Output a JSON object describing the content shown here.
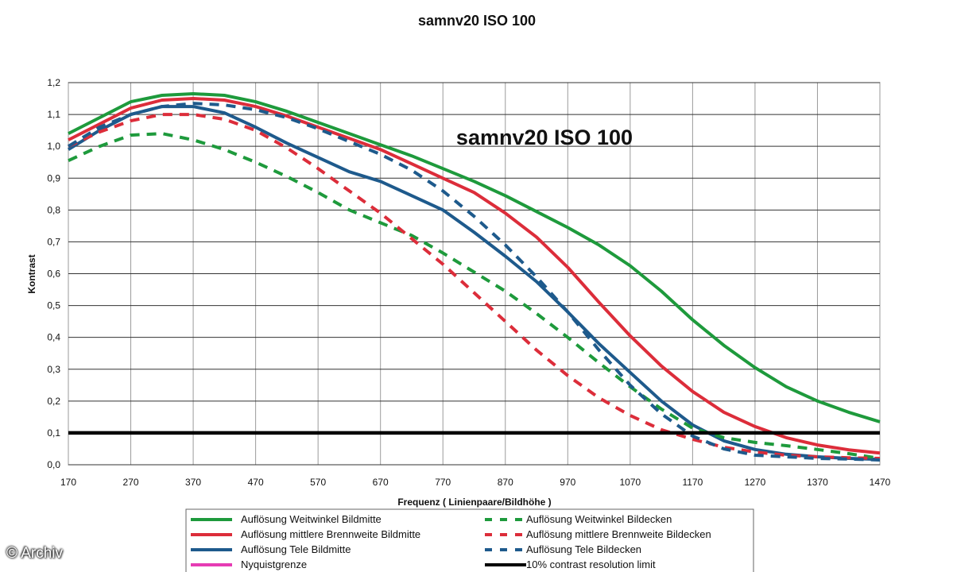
{
  "chart_data": {
    "type": "line",
    "title": "samnv20 ISO 100",
    "inner_title": "samnv20 ISO 100",
    "xlabel": "Frequenz ( Linienpaare/Bildhöhe )",
    "ylabel": "Kontrast",
    "xlim": [
      170,
      1470
    ],
    "ylim": [
      0.0,
      1.2
    ],
    "x_ticks": [
      "170",
      "270",
      "370",
      "470",
      "570",
      "670",
      "770",
      "870",
      "970",
      "1070",
      "1170",
      "1270",
      "1370",
      "1470"
    ],
    "y_ticks": [
      "0,0",
      "0,1",
      "0,2",
      "0,3",
      "0,4",
      "0,5",
      "0,6",
      "0,7",
      "0,8",
      "0,9",
      "1,0",
      "1,1",
      "1,2"
    ],
    "grid": "horizontal and vertical",
    "legend_position": "bottom",
    "colors": {
      "green": "#1e9a3c",
      "red": "#dc2d3a",
      "blue": "#1e5a8c",
      "magenta": "#e63cb4",
      "black": "#000000"
    },
    "series": [
      {
        "name": "Auflösung Weitwinkel Bildmitte",
        "color": "#1e9a3c",
        "style": "solid",
        "points": [
          [
            170,
            1.04
          ],
          [
            220,
            1.09
          ],
          [
            270,
            1.14
          ],
          [
            320,
            1.16
          ],
          [
            370,
            1.165
          ],
          [
            420,
            1.16
          ],
          [
            470,
            1.14
          ],
          [
            520,
            1.11
          ],
          [
            570,
            1.075
          ],
          [
            620,
            1.04
          ],
          [
            670,
            1.005
          ],
          [
            720,
            0.97
          ],
          [
            770,
            0.93
          ],
          [
            820,
            0.89
          ],
          [
            870,
            0.845
          ],
          [
            920,
            0.795
          ],
          [
            970,
            0.745
          ],
          [
            1020,
            0.69
          ],
          [
            1070,
            0.625
          ],
          [
            1120,
            0.545
          ],
          [
            1170,
            0.455
          ],
          [
            1220,
            0.375
          ],
          [
            1270,
            0.305
          ],
          [
            1320,
            0.245
          ],
          [
            1370,
            0.2
          ],
          [
            1420,
            0.165
          ],
          [
            1470,
            0.135
          ]
        ]
      },
      {
        "name": "Auflösung mittlere Brennweite Bildmitte",
        "color": "#dc2d3a",
        "style": "solid",
        "points": [
          [
            170,
            1.02
          ],
          [
            220,
            1.07
          ],
          [
            270,
            1.12
          ],
          [
            320,
            1.145
          ],
          [
            370,
            1.15
          ],
          [
            420,
            1.145
          ],
          [
            470,
            1.125
          ],
          [
            520,
            1.095
          ],
          [
            570,
            1.06
          ],
          [
            620,
            1.025
          ],
          [
            670,
            0.99
          ],
          [
            720,
            0.945
          ],
          [
            770,
            0.9
          ],
          [
            820,
            0.855
          ],
          [
            870,
            0.79
          ],
          [
            920,
            0.715
          ],
          [
            970,
            0.62
          ],
          [
            1020,
            0.51
          ],
          [
            1070,
            0.405
          ],
          [
            1120,
            0.31
          ],
          [
            1170,
            0.23
          ],
          [
            1220,
            0.165
          ],
          [
            1270,
            0.12
          ],
          [
            1320,
            0.085
          ],
          [
            1370,
            0.062
          ],
          [
            1420,
            0.047
          ],
          [
            1470,
            0.037
          ]
        ]
      },
      {
        "name": "Auflösung Tele Bildmitte",
        "color": "#1e5a8c",
        "style": "solid",
        "points": [
          [
            170,
            0.99
          ],
          [
            220,
            1.05
          ],
          [
            270,
            1.1
          ],
          [
            320,
            1.125
          ],
          [
            370,
            1.125
          ],
          [
            420,
            1.105
          ],
          [
            470,
            1.06
          ],
          [
            520,
            1.01
          ],
          [
            570,
            0.965
          ],
          [
            620,
            0.92
          ],
          [
            670,
            0.89
          ],
          [
            720,
            0.845
          ],
          [
            770,
            0.8
          ],
          [
            820,
            0.73
          ],
          [
            870,
            0.655
          ],
          [
            920,
            0.575
          ],
          [
            970,
            0.48
          ],
          [
            1020,
            0.38
          ],
          [
            1070,
            0.29
          ],
          [
            1120,
            0.2
          ],
          [
            1170,
            0.125
          ],
          [
            1220,
            0.075
          ],
          [
            1270,
            0.048
          ],
          [
            1320,
            0.033
          ],
          [
            1370,
            0.025
          ],
          [
            1420,
            0.02
          ],
          [
            1470,
            0.017
          ]
        ]
      },
      {
        "name": "Auflösung Weitwinkel Bildecken",
        "color": "#1e9a3c",
        "style": "dashed",
        "points": [
          [
            170,
            0.955
          ],
          [
            220,
            1.0
          ],
          [
            270,
            1.035
          ],
          [
            320,
            1.04
          ],
          [
            370,
            1.02
          ],
          [
            420,
            0.99
          ],
          [
            470,
            0.95
          ],
          [
            520,
            0.905
          ],
          [
            570,
            0.855
          ],
          [
            620,
            0.8
          ],
          [
            670,
            0.76
          ],
          [
            720,
            0.72
          ],
          [
            770,
            0.665
          ],
          [
            820,
            0.605
          ],
          [
            870,
            0.545
          ],
          [
            920,
            0.475
          ],
          [
            970,
            0.4
          ],
          [
            1020,
            0.32
          ],
          [
            1070,
            0.245
          ],
          [
            1120,
            0.175
          ],
          [
            1170,
            0.115
          ],
          [
            1220,
            0.085
          ],
          [
            1270,
            0.07
          ],
          [
            1320,
            0.06
          ],
          [
            1370,
            0.048
          ],
          [
            1420,
            0.035
          ],
          [
            1470,
            0.02
          ]
        ]
      },
      {
        "name": "Auflösung mittlere Brennweite Bildecken",
        "color": "#dc2d3a",
        "style": "dashed",
        "points": [
          [
            170,
            1.0
          ],
          [
            220,
            1.045
          ],
          [
            270,
            1.08
          ],
          [
            320,
            1.1
          ],
          [
            370,
            1.1
          ],
          [
            420,
            1.085
          ],
          [
            470,
            1.05
          ],
          [
            520,
            0.995
          ],
          [
            570,
            0.93
          ],
          [
            620,
            0.86
          ],
          [
            670,
            0.79
          ],
          [
            720,
            0.71
          ],
          [
            770,
            0.63
          ],
          [
            820,
            0.54
          ],
          [
            870,
            0.45
          ],
          [
            920,
            0.36
          ],
          [
            970,
            0.28
          ],
          [
            1020,
            0.21
          ],
          [
            1070,
            0.155
          ],
          [
            1120,
            0.11
          ],
          [
            1170,
            0.08
          ],
          [
            1220,
            0.055
          ],
          [
            1270,
            0.04
          ],
          [
            1320,
            0.03
          ],
          [
            1370,
            0.025
          ],
          [
            1420,
            0.022
          ],
          [
            1470,
            0.02
          ]
        ]
      },
      {
        "name": "Auflösung Tele Bildecken",
        "color": "#1e5a8c",
        "style": "dashed",
        "points": [
          [
            170,
            1.0
          ],
          [
            220,
            1.06
          ],
          [
            270,
            1.1
          ],
          [
            320,
            1.125
          ],
          [
            370,
            1.135
          ],
          [
            420,
            1.13
          ],
          [
            470,
            1.115
          ],
          [
            520,
            1.09
          ],
          [
            570,
            1.055
          ],
          [
            620,
            1.015
          ],
          [
            670,
            0.975
          ],
          [
            720,
            0.925
          ],
          [
            770,
            0.86
          ],
          [
            820,
            0.78
          ],
          [
            870,
            0.69
          ],
          [
            920,
            0.59
          ],
          [
            970,
            0.48
          ],
          [
            1020,
            0.36
          ],
          [
            1070,
            0.25
          ],
          [
            1120,
            0.16
          ],
          [
            1170,
            0.09
          ],
          [
            1220,
            0.05
          ],
          [
            1270,
            0.03
          ],
          [
            1320,
            0.025
          ],
          [
            1370,
            0.02
          ],
          [
            1420,
            0.018
          ],
          [
            1470,
            0.015
          ]
        ]
      },
      {
        "name": "Nyquistgrenze",
        "color": "#e63cb4",
        "style": "solid",
        "points": []
      },
      {
        "name": "10% contrast resolution limit",
        "color": "#000000",
        "style": "solid-thick",
        "points": [
          [
            170,
            0.1
          ],
          [
            1470,
            0.1
          ]
        ]
      }
    ]
  },
  "watermark": "© Archiv"
}
